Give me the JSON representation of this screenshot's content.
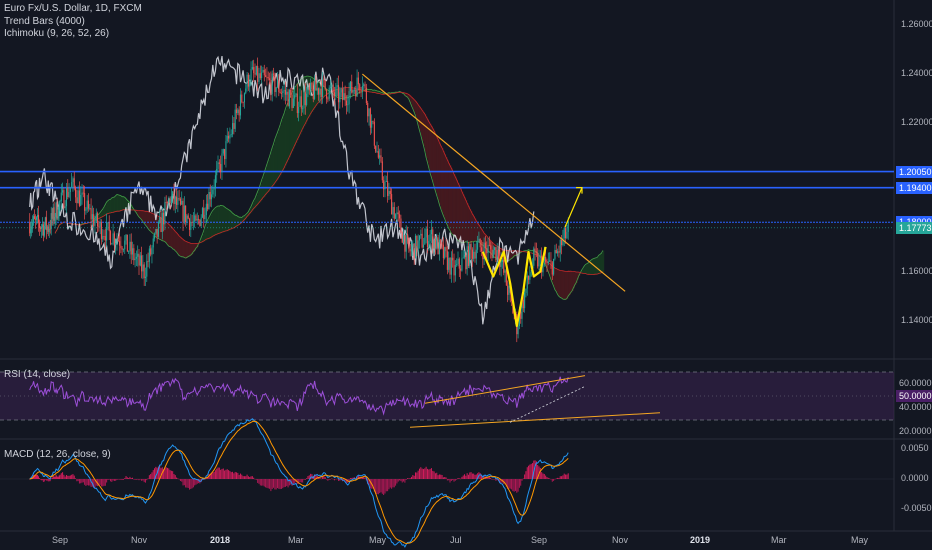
{
  "header": {
    "symbol": "Euro Fx/U.S. Dollar, 1D, FXCM",
    "indicator1": "Trend Bars (4000)",
    "indicator2": "Ichimoku (9, 26, 52, 26)"
  },
  "rsi_label": "RSI (14, close)",
  "macd_label": "MACD (12, 26, close, 9)",
  "colors": {
    "background": "#131722",
    "bull": "#26a69a",
    "bear": "#ef5350",
    "lagging_span": "#e0e3eb",
    "trendline": "#f5a623",
    "horizontal": "#2962ff",
    "pattern": "#ffe600",
    "rsi_line": "#9c4fd8",
    "rsi_band": "#3b2251",
    "macd_line": "#2196f3",
    "signal_line": "#ff9800",
    "hist": "#c2185b",
    "current_price_badge": "#26a69a"
  },
  "chart_data": [
    {
      "type": "candlestick",
      "title": "Euro Fx/U.S. Dollar, 1D, FXCM",
      "x_labels": [
        "Sep",
        "Nov",
        "2018",
        "Mar",
        "May",
        "Jul",
        "Sep",
        "Nov",
        "2019",
        "Mar",
        "May"
      ],
      "y_ticks": [
        "1.26000",
        "1.24000",
        "1.22000",
        "1.20000",
        "1.18000",
        "1.16000",
        "1.14000"
      ],
      "ylim": [
        1.125,
        1.27
      ],
      "horizontal_levels": [
        {
          "value": 1.2005,
          "label": "1.20050",
          "style": "solid"
        },
        {
          "value": 1.194,
          "label": "1.19400",
          "style": "solid"
        },
        {
          "value": 1.18,
          "label": "1.18000",
          "style": "solid"
        },
        {
          "value": 1.17773,
          "label": "1.17773",
          "style": "current"
        }
      ],
      "trendline": {
        "from": {
          "x": "2018-04-20",
          "y": 1.24
        },
        "to": {
          "x": "2018-11-05",
          "y": 1.152
        }
      },
      "price_path": [
        [
          "2017-08-01",
          1.18
        ],
        [
          "2017-08-20",
          1.178
        ],
        [
          "2017-09-10",
          1.195
        ],
        [
          "2017-10-01",
          1.178
        ],
        [
          "2017-10-20",
          1.172
        ],
        [
          "2017-11-05",
          1.16
        ],
        [
          "2017-11-25",
          1.19
        ],
        [
          "2017-12-15",
          1.178
        ],
        [
          "2018-01-01",
          1.2
        ],
        [
          "2018-01-25",
          1.24
        ],
        [
          "2018-02-15",
          1.235
        ],
        [
          "2018-03-01",
          1.228
        ],
        [
          "2018-03-20",
          1.235
        ],
        [
          "2018-04-05",
          1.23
        ],
        [
          "2018-04-20",
          1.238
        ],
        [
          "2018-05-05",
          1.198
        ],
        [
          "2018-05-25",
          1.168
        ],
        [
          "2018-06-10",
          1.175
        ],
        [
          "2018-06-28",
          1.16
        ],
        [
          "2018-07-15",
          1.17
        ],
        [
          "2018-08-01",
          1.168
        ],
        [
          "2018-08-15",
          1.138
        ],
        [
          "2018-08-28",
          1.165
        ],
        [
          "2018-09-10",
          1.162
        ],
        [
          "2018-09-24",
          1.178
        ]
      ]
    },
    {
      "type": "line",
      "title": "RSI (14, close)",
      "y_ticks": [
        "60.0000",
        "50.0000",
        "40.0000",
        "20.0000"
      ],
      "ylim": [
        15,
        80
      ],
      "bands": [
        70,
        30
      ],
      "current_value": "50.0000"
    },
    {
      "type": "line",
      "title": "MACD (12, 26, close, 9)",
      "y_ticks": [
        "0.0050",
        "0.0000",
        "-0.0050"
      ],
      "ylim": [
        -0.0085,
        0.0065
      ],
      "series": [
        {
          "name": "MACD"
        },
        {
          "name": "Signal"
        },
        {
          "name": "Histogram"
        }
      ]
    }
  ]
}
